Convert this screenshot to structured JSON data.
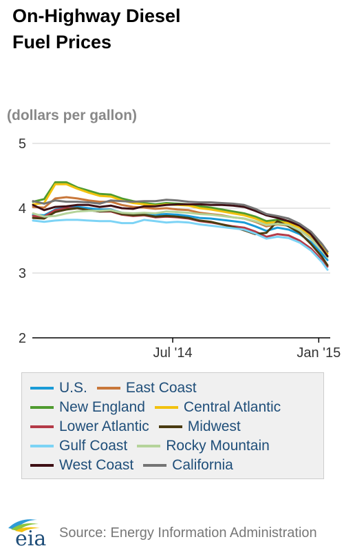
{
  "title": "On-Highway Diesel\nFuel Prices",
  "title_line1": "On-Highway Diesel",
  "title_line2": "Fuel Prices",
  "source": "Source: Energy Information Administration",
  "logo_text": "eia",
  "chart_data": {
    "type": "line",
    "title": "On-Highway Diesel Fuel Prices",
    "ylabel": "(dollars per gallon)",
    "xlabel": "",
    "ylim": [
      2,
      5
    ],
    "yticks": [
      2,
      3,
      4,
      5
    ],
    "xtick_labels": [
      "Jul '14",
      "Jan '15"
    ],
    "grid": true,
    "legend_position": "bottom",
    "x": [
      "2014-01-06",
      "2014-01-20",
      "2014-02-03",
      "2014-02-17",
      "2014-03-03",
      "2014-03-17",
      "2014-03-31",
      "2014-04-14",
      "2014-04-28",
      "2014-05-12",
      "2014-05-26",
      "2014-06-09",
      "2014-06-23",
      "2014-07-07",
      "2014-07-21",
      "2014-08-04",
      "2014-08-18",
      "2014-09-01",
      "2014-09-15",
      "2014-09-29",
      "2014-10-13",
      "2014-10-27",
      "2014-11-10",
      "2014-11-24",
      "2014-12-08",
      "2014-12-22",
      "2015-01-05",
      "2015-01-12"
    ],
    "series": [
      {
        "name": "U.S.",
        "color": "#1a9bd7",
        "values": [
          3.9,
          3.89,
          3.98,
          4.01,
          4.02,
          4.0,
          3.98,
          3.98,
          3.93,
          3.91,
          3.92,
          3.9,
          3.91,
          3.9,
          3.88,
          3.85,
          3.84,
          3.82,
          3.8,
          3.78,
          3.72,
          3.65,
          3.7,
          3.67,
          3.6,
          3.48,
          3.3,
          3.2
        ]
      },
      {
        "name": "East Coast",
        "color": "#c8773a",
        "values": [
          4.02,
          4.01,
          4.15,
          4.17,
          4.15,
          4.12,
          4.1,
          4.1,
          4.05,
          4.02,
          4.01,
          3.99,
          4.0,
          3.98,
          3.97,
          3.93,
          3.91,
          3.89,
          3.86,
          3.84,
          3.79,
          3.72,
          3.75,
          3.73,
          3.66,
          3.54,
          3.37,
          3.26
        ]
      },
      {
        "name": "New England",
        "color": "#4f9b2f",
        "values": [
          4.1,
          4.14,
          4.4,
          4.4,
          4.32,
          4.27,
          4.22,
          4.21,
          4.15,
          4.11,
          4.08,
          4.06,
          4.08,
          4.07,
          4.06,
          4.03,
          4.01,
          3.98,
          3.95,
          3.92,
          3.87,
          3.8,
          3.82,
          3.8,
          3.73,
          3.61,
          3.43,
          3.33
        ]
      },
      {
        "name": "Central Atlantic",
        "color": "#f2c20f",
        "values": [
          4.06,
          4.08,
          4.37,
          4.37,
          4.3,
          4.24,
          4.19,
          4.18,
          4.12,
          4.08,
          4.06,
          4.04,
          4.06,
          4.05,
          4.04,
          4.0,
          3.98,
          3.95,
          3.92,
          3.89,
          3.84,
          3.77,
          3.79,
          3.77,
          3.7,
          3.58,
          3.4,
          3.3
        ]
      },
      {
        "name": "Lower Atlantic",
        "color": "#b43a47",
        "values": [
          3.88,
          3.87,
          3.97,
          4.0,
          4.0,
          3.97,
          3.95,
          3.95,
          3.9,
          3.88,
          3.89,
          3.86,
          3.87,
          3.86,
          3.84,
          3.8,
          3.78,
          3.75,
          3.72,
          3.7,
          3.64,
          3.56,
          3.6,
          3.58,
          3.5,
          3.38,
          3.2,
          3.1
        ]
      },
      {
        "name": "Midwest",
        "color": "#4a3b10",
        "values": [
          3.85,
          3.84,
          3.94,
          3.98,
          4.0,
          3.97,
          3.95,
          3.96,
          3.91,
          3.89,
          3.9,
          3.87,
          3.88,
          3.87,
          3.85,
          3.81,
          3.79,
          3.75,
          3.71,
          3.66,
          3.6,
          3.62,
          3.8,
          3.72,
          3.62,
          3.45,
          3.25,
          3.12
        ]
      },
      {
        "name": "Gulf Coast",
        "color": "#7cd3f5",
        "values": [
          3.81,
          3.79,
          3.81,
          3.82,
          3.82,
          3.81,
          3.8,
          3.8,
          3.77,
          3.77,
          3.82,
          3.8,
          3.78,
          3.79,
          3.78,
          3.75,
          3.73,
          3.71,
          3.69,
          3.67,
          3.61,
          3.53,
          3.56,
          3.54,
          3.47,
          3.35,
          3.17,
          3.05
        ]
      },
      {
        "name": "Rocky Mountain",
        "color": "#b5d39a",
        "values": [
          3.92,
          3.87,
          3.88,
          3.92,
          3.95,
          3.96,
          3.96,
          3.97,
          3.93,
          3.92,
          3.93,
          3.92,
          3.95,
          3.94,
          3.93,
          3.91,
          3.9,
          3.88,
          3.86,
          3.84,
          3.8,
          3.74,
          3.76,
          3.74,
          3.66,
          3.53,
          3.35,
          3.24
        ]
      },
      {
        "name": "West Coast",
        "color": "#3e0f14",
        "values": [
          4.05,
          3.97,
          4.02,
          4.03,
          4.05,
          4.05,
          4.02,
          4.04,
          4.0,
          3.99,
          4.03,
          4.03,
          4.05,
          4.06,
          4.06,
          4.06,
          4.05,
          4.05,
          4.04,
          4.02,
          3.96,
          3.89,
          3.85,
          3.8,
          3.73,
          3.6,
          3.38,
          3.26
        ]
      },
      {
        "name": "California",
        "color": "#747474",
        "values": [
          4.11,
          4.07,
          4.12,
          4.1,
          4.1,
          4.09,
          4.07,
          4.12,
          4.11,
          4.1,
          4.11,
          4.11,
          4.13,
          4.12,
          4.1,
          4.09,
          4.09,
          4.08,
          4.07,
          4.05,
          3.99,
          3.91,
          3.88,
          3.84,
          3.76,
          3.64,
          3.45,
          3.33
        ]
      }
    ]
  }
}
